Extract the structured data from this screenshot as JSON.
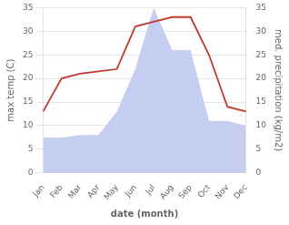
{
  "chart_data": {
    "type": "line",
    "xlabel": "date (month)",
    "ylabel": "max temp (C)",
    "y2label": "med. precipitation (kg/m2)",
    "categories": [
      "Jan",
      "Feb",
      "Mar",
      "Apr",
      "May",
      "Jun",
      "Jul",
      "Aug",
      "Sep",
      "Oct",
      "Nov",
      "Dec"
    ],
    "series": [
      {
        "type": "area",
        "color": "#c5cdf0",
        "axis": "y2",
        "values": [
          7.5,
          7.5,
          8,
          8,
          13,
          22,
          35,
          26,
          26,
          11,
          11,
          10
        ]
      },
      {
        "type": "line",
        "color": "#c0392b",
        "values": [
          13,
          20,
          21,
          21.5,
          22,
          31,
          32,
          33,
          33,
          25,
          14,
          13
        ]
      }
    ],
    "ylim": [
      0,
      35
    ],
    "yticks": [
      0,
      5,
      10,
      15,
      20,
      25,
      30,
      35
    ],
    "y2lim": [
      0,
      35
    ],
    "y2ticks": [
      0,
      5,
      10,
      15,
      20,
      25,
      30,
      35
    ],
    "grid": true
  }
}
